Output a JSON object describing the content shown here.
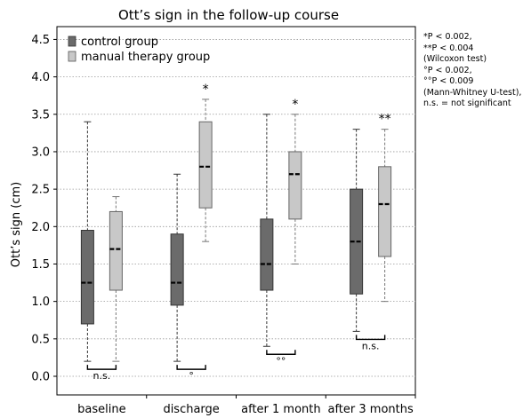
{
  "chart_data": {
    "type": "boxplot",
    "title": "Ott’s sign in the follow-up course",
    "ylabel": "Ott’s sign (cm)",
    "xlabel": "",
    "ylim": [
      0,
      4.6
    ],
    "yticks": [
      "0.0",
      "0.5",
      "1.0",
      "1.5",
      "2.0",
      "2.5",
      "3.0",
      "3.5",
      "4.0",
      "4.5"
    ],
    "ytick_values": [
      0,
      0.5,
      1.0,
      1.5,
      2.0,
      2.5,
      3.0,
      3.5,
      4.0,
      4.5
    ],
    "grid": true,
    "legend_position": "top-left",
    "categories": [
      "baseline",
      "discharge",
      "after 1 month",
      "after 3 months"
    ],
    "series": [
      {
        "name": "control group",
        "color": "#6b6b6b",
        "boxes": [
          {
            "min": 0.2,
            "q1": 0.7,
            "median": 1.25,
            "q3": 1.95,
            "max": 3.4
          },
          {
            "min": 0.2,
            "q1": 0.95,
            "median": 1.25,
            "q3": 1.9,
            "max": 2.7
          },
          {
            "min": 0.4,
            "q1": 1.15,
            "median": 1.5,
            "q3": 2.1,
            "max": 3.5
          },
          {
            "min": 0.6,
            "q1": 1.1,
            "median": 1.8,
            "q3": 2.5,
            "max": 3.3
          }
        ]
      },
      {
        "name": "manual therapy group",
        "color": "#c8c8c8",
        "boxes": [
          {
            "min": 0.2,
            "q1": 1.15,
            "median": 1.7,
            "q3": 2.2,
            "max": 2.4
          },
          {
            "min": 1.8,
            "q1": 2.25,
            "median": 2.8,
            "q3": 3.4,
            "max": 3.7
          },
          {
            "min": 1.5,
            "q1": 2.1,
            "median": 2.7,
            "q3": 3.0,
            "max": 3.5
          },
          {
            "min": 1.0,
            "q1": 1.6,
            "median": 2.3,
            "q3": 2.8,
            "max": 3.3
          }
        ]
      }
    ],
    "within_group_markers": [
      "",
      "*",
      "*",
      "**"
    ],
    "between_group_labels": [
      "n.s.",
      "°",
      "°°",
      "n.s."
    ],
    "notes": [
      "*P < 0.002,",
      "**P < 0.004",
      "(Wilcoxon test)",
      "°P < 0.002,",
      "°°P < 0.009",
      "(Mann-Whitney U-test),",
      "n.s. = not significant"
    ]
  }
}
